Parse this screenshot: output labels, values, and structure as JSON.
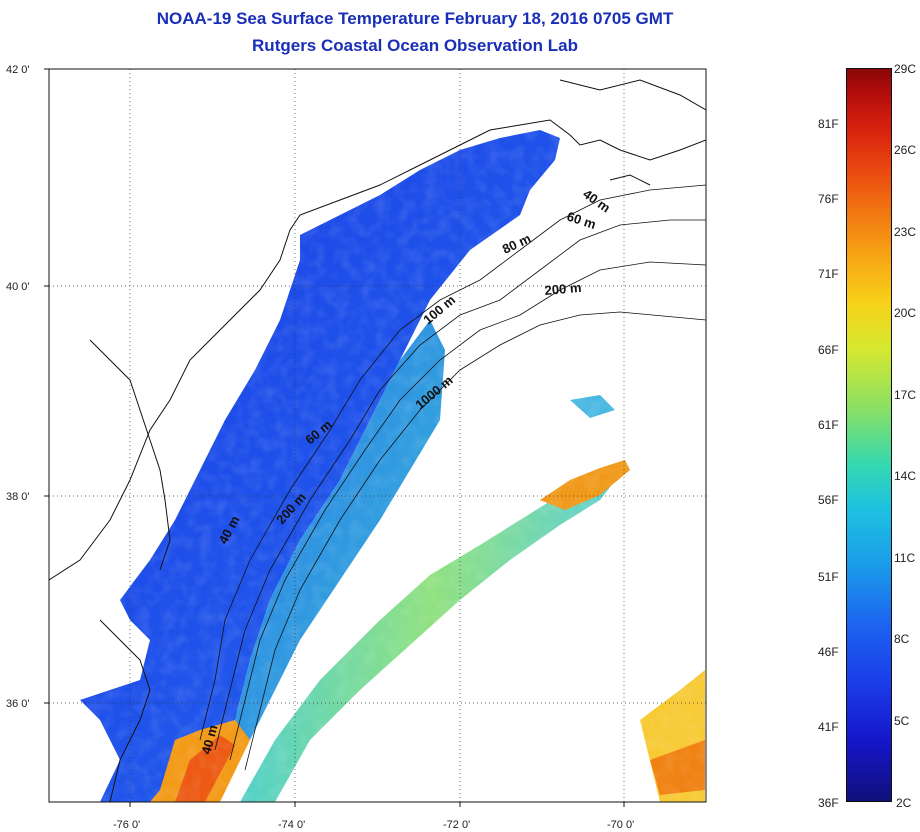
{
  "title_line1": "NOAA-19 Sea Surface Temperature February 18, 2016 0705 GMT",
  "title_line2": "Rutgers Coastal Ocean Observation Lab",
  "axes": {
    "lat_ticks": [
      "42 0'",
      "40 0'",
      "38 0'",
      "36 0'"
    ],
    "lon_ticks": [
      "-76 0'",
      "-74 0'",
      "-72 0'",
      "-70 0'"
    ]
  },
  "contour_labels": [
    "40 m",
    "60 m",
    "80 m",
    "200 m",
    "100 m",
    "1000 m",
    "60 m",
    "200 m",
    "40 m",
    "40 m"
  ],
  "colorbar": {
    "fahrenheit": [
      "81F",
      "76F",
      "71F",
      "66F",
      "61F",
      "56F",
      "51F",
      "46F",
      "41F",
      "36F"
    ],
    "celsius": [
      "29C",
      "26C",
      "23C",
      "20C",
      "17C",
      "14C",
      "11C",
      "8C",
      "5C",
      "2C"
    ]
  }
}
